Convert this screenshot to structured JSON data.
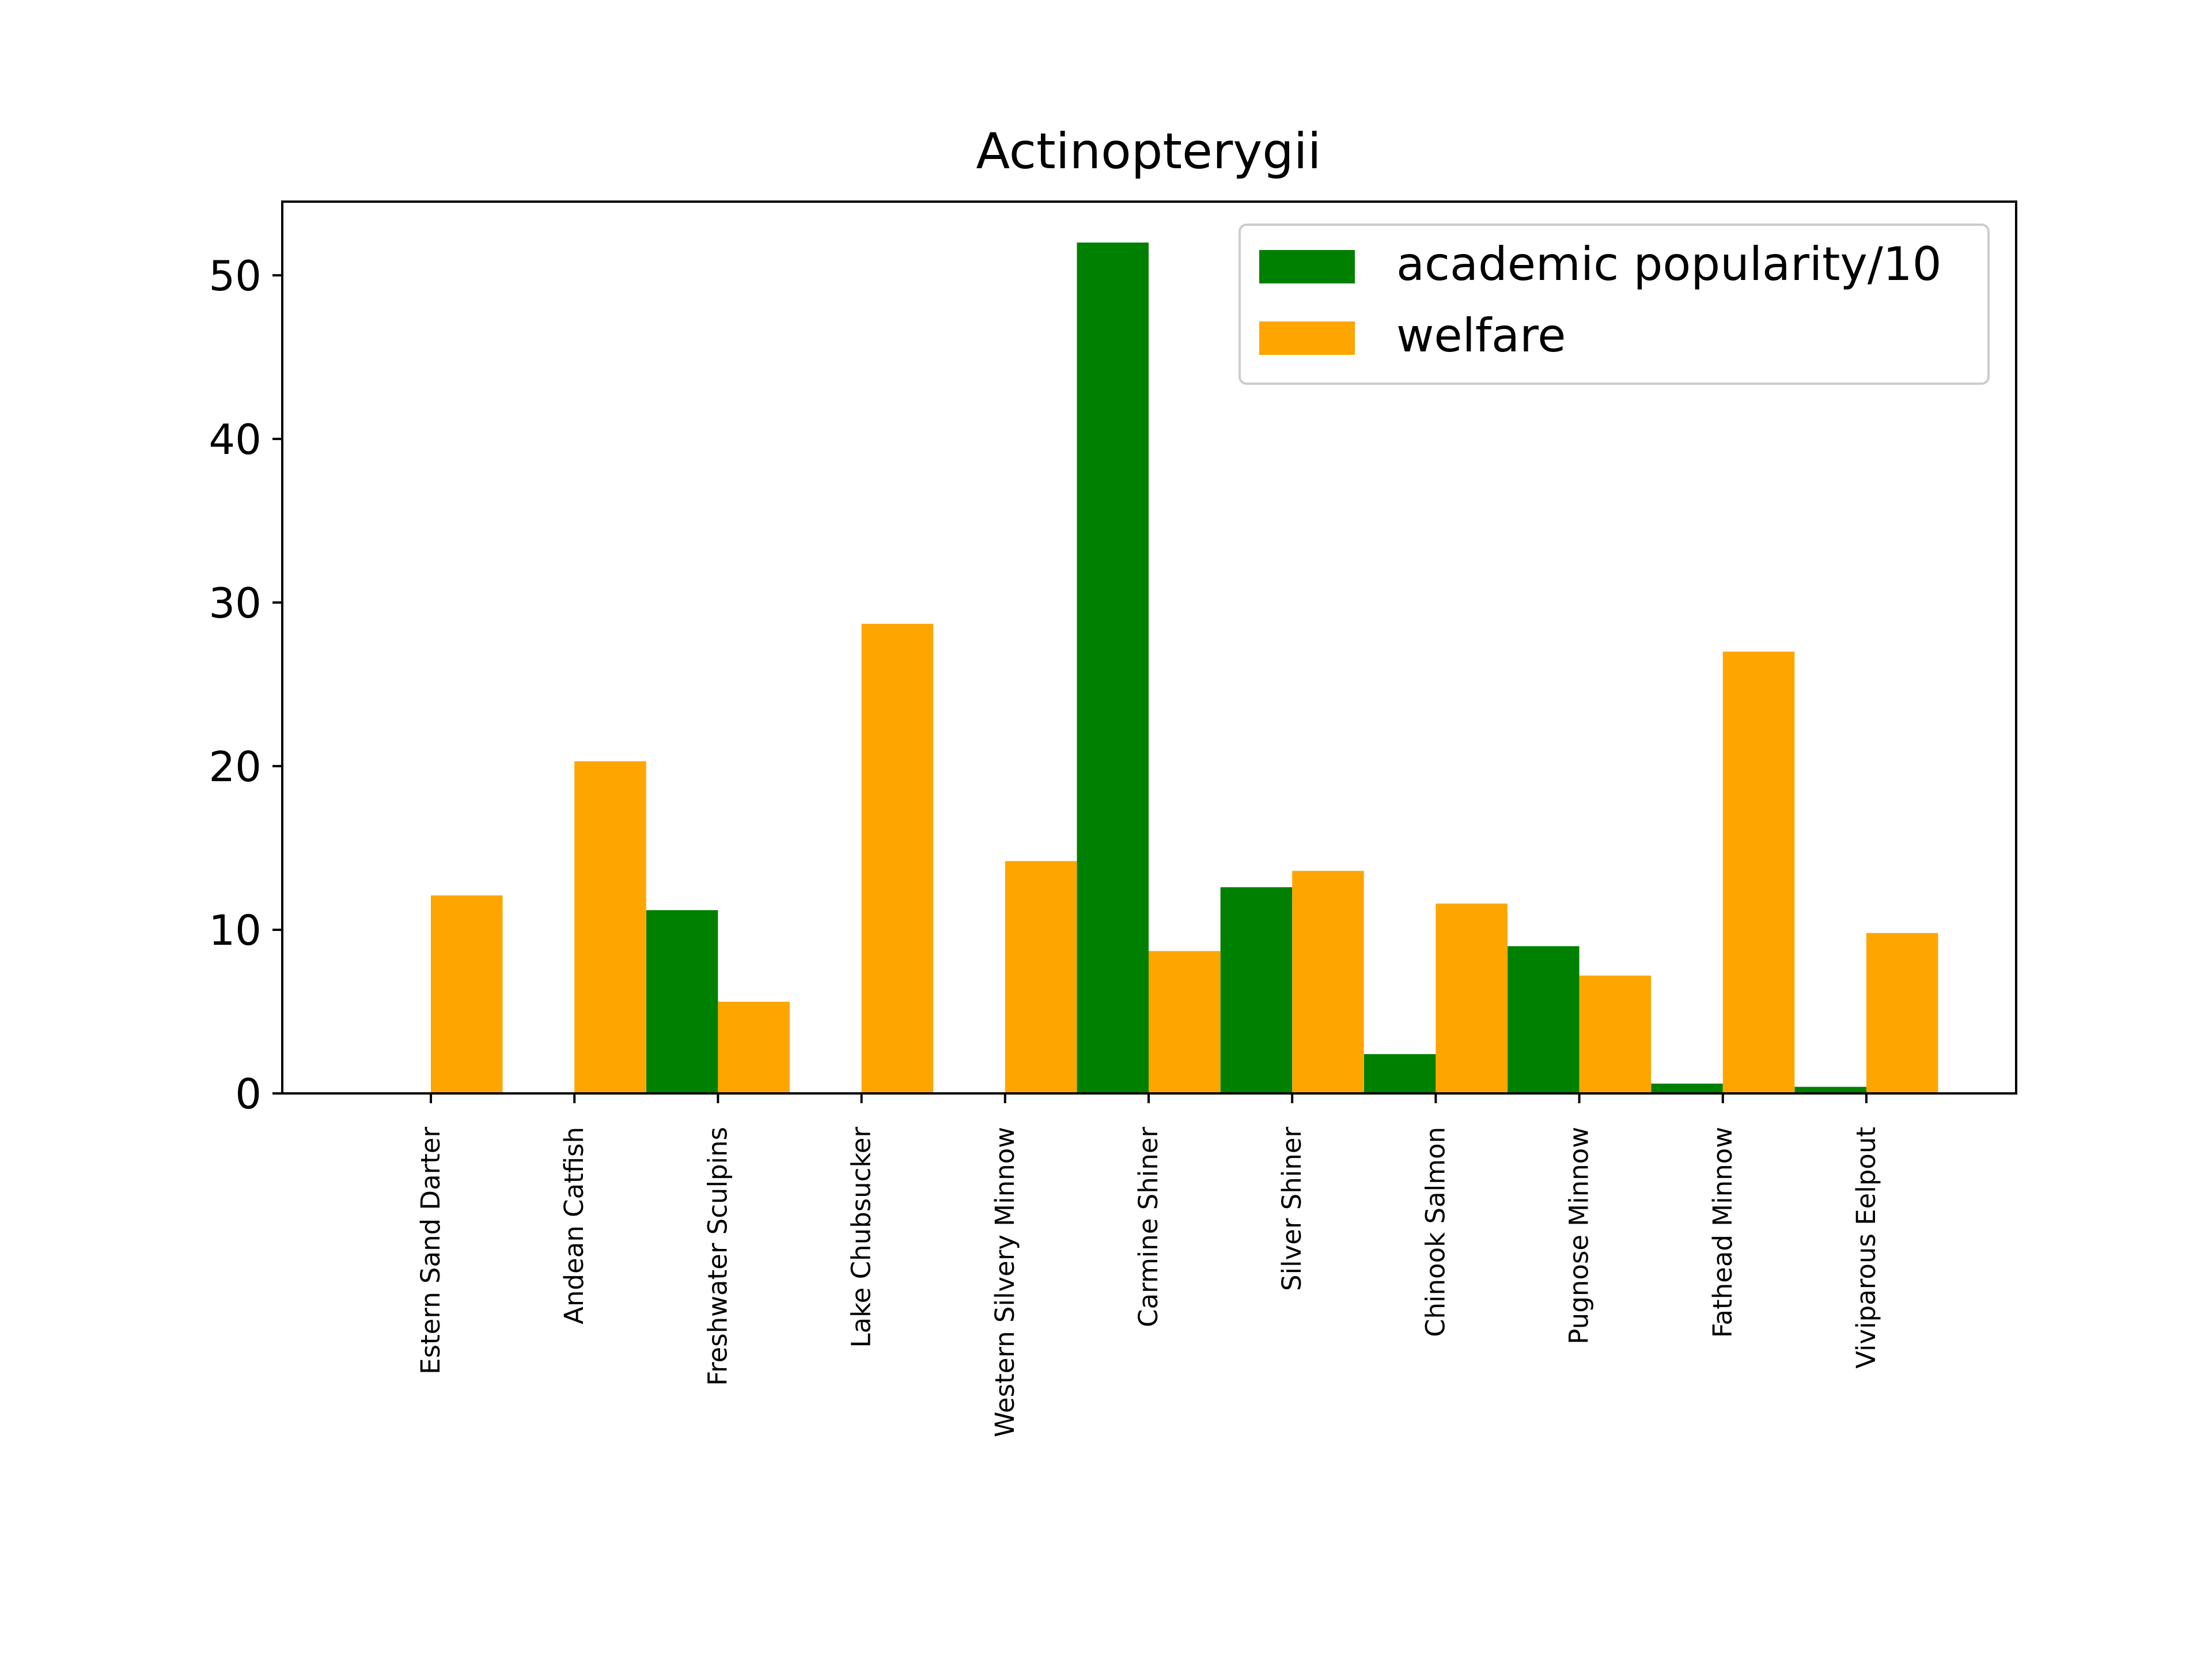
{
  "chart_data": {
    "type": "bar",
    "title": "Actinopterygii",
    "xlabel": "",
    "ylabel": "",
    "categories": [
      "Estern Sand Darter",
      "Andean Catfish",
      "Freshwater Sculpins",
      "Lake Chubsucker",
      "Western Silvery Minnow",
      "Carmine Shiner",
      "Silver Shiner",
      "Chinook Salmon",
      "Pugnose Minnow",
      "Fathead Minnow",
      "Viviparous Eelpout"
    ],
    "series": [
      {
        "name": "academic popularity/10",
        "color": "#008000",
        "values": [
          0,
          0,
          11.2,
          0,
          0,
          52.0,
          12.6,
          2.4,
          9.0,
          0.6,
          0.4
        ]
      },
      {
        "name": "welfare",
        "color": "#FFA500",
        "values": [
          12.1,
          20.3,
          5.6,
          28.7,
          14.2,
          8.7,
          13.6,
          11.6,
          7.2,
          27.0,
          9.8
        ]
      }
    ],
    "ylim": [
      0,
      54.5
    ],
    "yticks": [
      0,
      10,
      20,
      30,
      40,
      50
    ],
    "grid": false,
    "legend_position": "top-right"
  }
}
